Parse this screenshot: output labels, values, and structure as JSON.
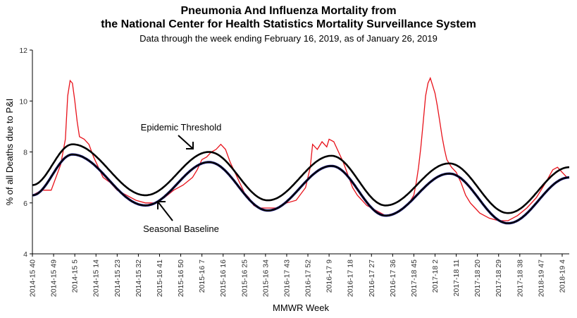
{
  "chart_data": {
    "type": "line",
    "title_line1": "Pneumonia And Influenza Mortality from",
    "title_line2": "the National Center for Health Statistics Mortality Surveillance System",
    "subtitle": "Data through the week ending February 16, 2019, as of January 26, 2019",
    "xlabel": "MMWR Week",
    "ylabel": "% of all Deaths due to P&I",
    "ylim": [
      4,
      12
    ],
    "yticks": [
      4,
      6,
      8,
      10,
      12
    ],
    "xticks": [
      "2014-15 40",
      "2014-15 49",
      "2014-15 5",
      "2014-15 14",
      "2014-15 23",
      "2014-15 32",
      "2015-16 41",
      "2015-16 50",
      "2015-16 7",
      "2015-16 16",
      "2015-16 25",
      "2015-16 34",
      "2016-17 43",
      "2016-17 52",
      "2016-17 9",
      "2016-17 18",
      "2016-17 27",
      "2016-17 36",
      "2017-18 45",
      "2017-18 2",
      "2017-18 11",
      "2017-18 20",
      "2017-18 29",
      "2017-18 38",
      "2018-19 47",
      "2018-19 4"
    ],
    "week_count": 228,
    "annotations": {
      "epidemic_threshold": "Epidemic Threshold",
      "seasonal_baseline": "Seasonal Baseline"
    },
    "series": [
      {
        "key": "observed",
        "color": "#e8111a",
        "keypoints": [
          [
            0,
            6.3
          ],
          [
            4,
            6.5
          ],
          [
            8,
            6.5
          ],
          [
            10,
            7.0
          ],
          [
            12,
            7.5
          ],
          [
            14,
            8.5
          ],
          [
            15,
            10.2
          ],
          [
            16,
            10.8
          ],
          [
            17,
            10.7
          ],
          [
            18,
            10.0
          ],
          [
            19,
            9.2
          ],
          [
            20,
            8.6
          ],
          [
            22,
            8.5
          ],
          [
            24,
            8.3
          ],
          [
            26,
            7.8
          ],
          [
            28,
            7.4
          ],
          [
            30,
            7.0
          ],
          [
            33,
            6.8
          ],
          [
            36,
            6.5
          ],
          [
            40,
            6.3
          ],
          [
            44,
            6.1
          ],
          [
            48,
            6.0
          ],
          [
            52,
            6.0
          ],
          [
            56,
            6.2
          ],
          [
            60,
            6.5
          ],
          [
            64,
            6.7
          ],
          [
            68,
            7.0
          ],
          [
            70,
            7.3
          ],
          [
            72,
            7.7
          ],
          [
            74,
            7.8
          ],
          [
            76,
            8.0
          ],
          [
            78,
            8.1
          ],
          [
            80,
            8.3
          ],
          [
            82,
            8.1
          ],
          [
            84,
            7.6
          ],
          [
            86,
            7.2
          ],
          [
            88,
            6.8
          ],
          [
            90,
            6.4
          ],
          [
            92,
            6.2
          ],
          [
            94,
            5.9
          ],
          [
            96,
            5.8
          ],
          [
            100,
            5.8
          ],
          [
            104,
            5.8
          ],
          [
            108,
            6.0
          ],
          [
            112,
            6.1
          ],
          [
            116,
            6.6
          ],
          [
            118,
            7.4
          ],
          [
            119,
            8.3
          ],
          [
            121,
            8.1
          ],
          [
            123,
            8.4
          ],
          [
            125,
            8.2
          ],
          [
            126,
            8.5
          ],
          [
            128,
            8.4
          ],
          [
            130,
            8.0
          ],
          [
            132,
            7.6
          ],
          [
            134,
            7.1
          ],
          [
            136,
            6.6
          ],
          [
            138,
            6.3
          ],
          [
            140,
            6.1
          ],
          [
            142,
            5.9
          ],
          [
            146,
            5.7
          ],
          [
            150,
            5.5
          ],
          [
            154,
            5.6
          ],
          [
            158,
            5.8
          ],
          [
            160,
            6.0
          ],
          [
            162,
            6.3
          ],
          [
            163,
            6.8
          ],
          [
            164,
            7.4
          ],
          [
            165,
            8.2
          ],
          [
            166,
            9.2
          ],
          [
            167,
            10.2
          ],
          [
            168,
            10.7
          ],
          [
            169,
            10.9
          ],
          [
            170,
            10.6
          ],
          [
            171,
            10.3
          ],
          [
            172,
            9.8
          ],
          [
            173,
            9.2
          ],
          [
            174,
            8.6
          ],
          [
            175,
            8.1
          ],
          [
            176,
            7.7
          ],
          [
            178,
            7.4
          ],
          [
            180,
            7.2
          ],
          [
            182,
            6.8
          ],
          [
            184,
            6.3
          ],
          [
            186,
            6.0
          ],
          [
            188,
            5.8
          ],
          [
            190,
            5.6
          ],
          [
            194,
            5.4
          ],
          [
            198,
            5.3
          ],
          [
            202,
            5.3
          ],
          [
            206,
            5.5
          ],
          [
            210,
            5.8
          ],
          [
            214,
            6.2
          ],
          [
            218,
            6.8
          ],
          [
            221,
            7.3
          ],
          [
            223,
            7.4
          ],
          [
            225,
            7.2
          ],
          [
            227,
            7.0
          ]
        ]
      },
      {
        "key": "epidemic-threshold",
        "color": "#000000",
        "baseline_offset": 0.4
      },
      {
        "key": "seasonal-baseline",
        "color": "#000000",
        "marker_color": "#1f1f8f",
        "troughs": [
          [
            0,
            6.3
          ],
          [
            48,
            5.9
          ],
          [
            100,
            5.7
          ],
          [
            150,
            5.5
          ],
          [
            202,
            5.2
          ]
        ],
        "peaks": [
          [
            17,
            7.9
          ],
          [
            75,
            7.6
          ],
          [
            127,
            7.45
          ],
          [
            177,
            7.15
          ],
          [
            228,
            7.0
          ]
        ]
      }
    ]
  }
}
